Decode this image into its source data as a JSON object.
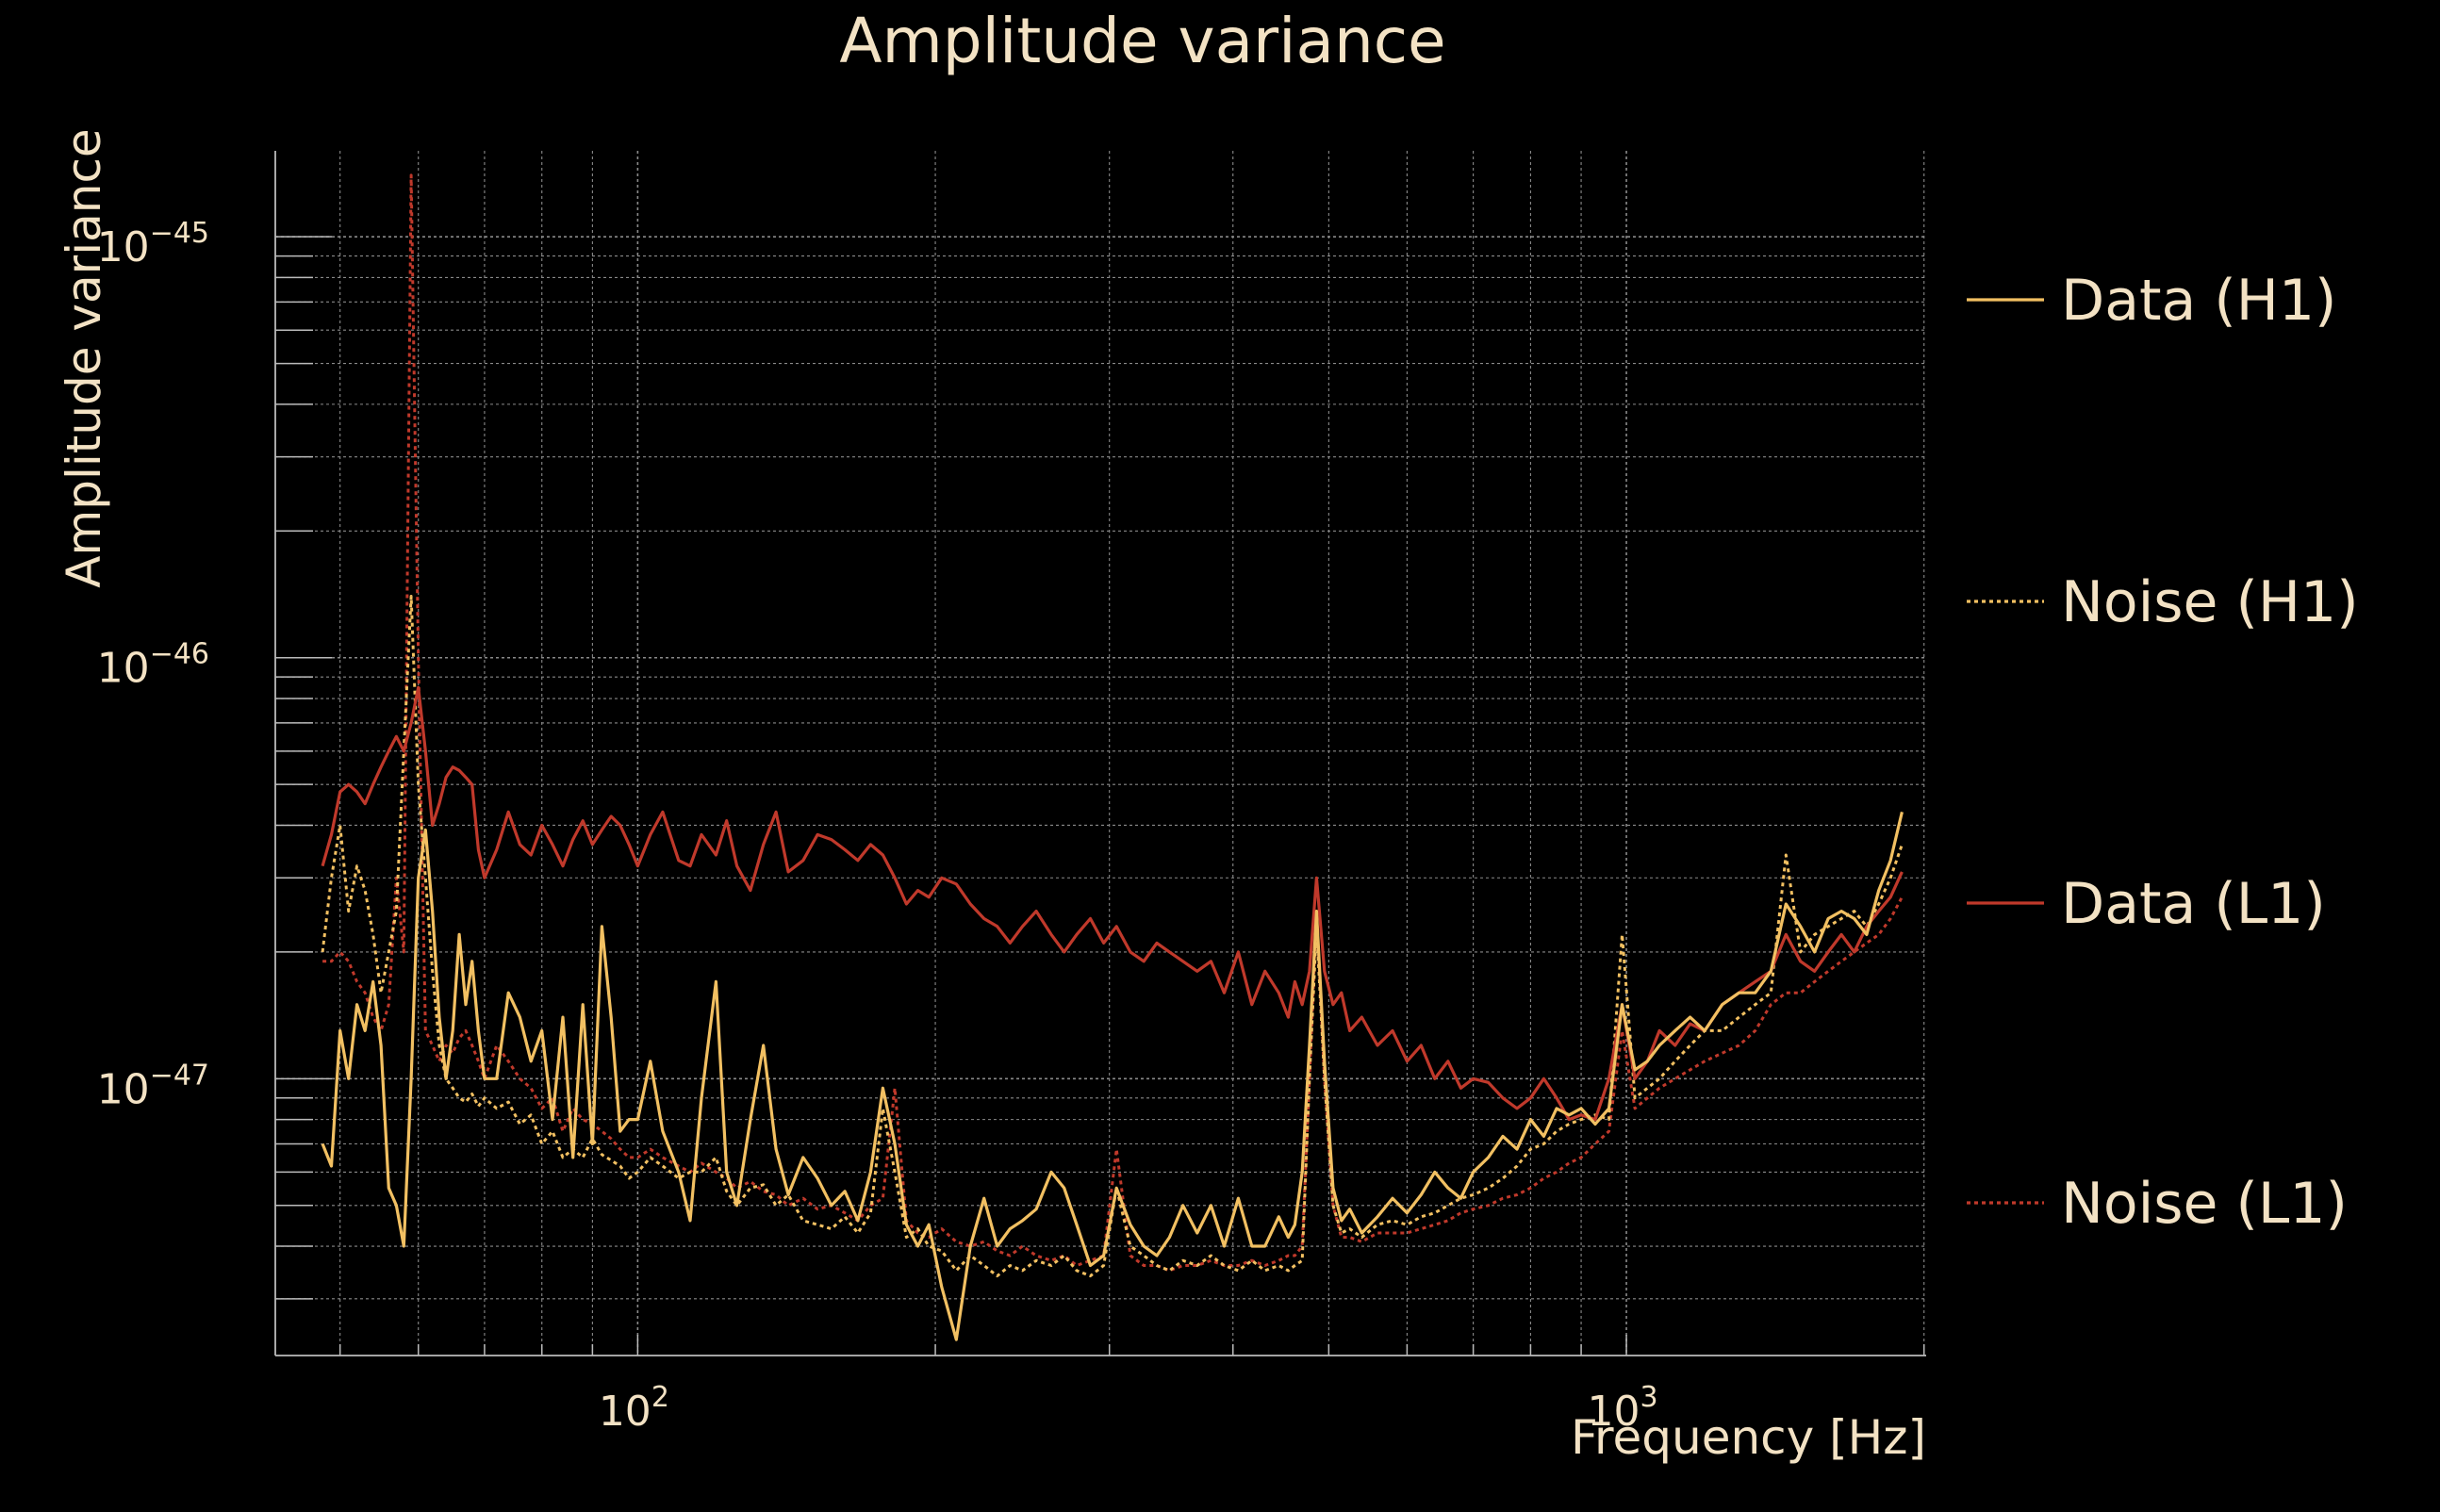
{
  "chart_data": {
    "type": "line",
    "title": "Amplitude variance",
    "xlabel": "Frequency [Hz]",
    "ylabel": "Amplitude variance",
    "xscale": "log",
    "yscale": "log",
    "xlim": [
      43,
      2010
    ],
    "ylim": [
      2.2e-48,
      1.6e-45
    ],
    "x_ticks": [
      {
        "value": 100,
        "base": "10",
        "exp": "2"
      },
      {
        "value": 1000,
        "base": "10",
        "exp": "3"
      }
    ],
    "y_ticks": [
      {
        "value": 1e-45,
        "base": "10",
        "exp": "−45"
      },
      {
        "value": 1e-46,
        "base": "10",
        "exp": "−46"
      },
      {
        "value": 1e-47,
        "base": "10",
        "exp": "−47"
      }
    ],
    "grid": true,
    "legend_position": "right",
    "colors": {
      "h1": "#f2c062",
      "l1": "#c0392b",
      "text": "#f3e2c4",
      "grid": "#8a8a8a",
      "background": "#000000"
    },
    "series": [
      {
        "name": "Data (H1)",
        "color": "#f2c062",
        "dash": "solid",
        "x": [
          48,
          49,
          50,
          51,
          52,
          53,
          54,
          55,
          56,
          57,
          58,
          59,
          60,
          61,
          62,
          63,
          64,
          65,
          66,
          67,
          68,
          69,
          70,
          72,
          74,
          76,
          78,
          80,
          82,
          84,
          86,
          88,
          90,
          92,
          94,
          96,
          98,
          100,
          103,
          106,
          110,
          113,
          116,
          120,
          123,
          126,
          130,
          134,
          138,
          142,
          147,
          152,
          157,
          162,
          167,
          172,
          177,
          182,
          187,
          192,
          197,
          203,
          210,
          217,
          224,
          231,
          238,
          245,
          253,
          262,
          270,
          278,
          287,
          296,
          305,
          315,
          325,
          335,
          345,
          356,
          368,
          380,
          392,
          405,
          418,
          431,
          445,
          455,
          462,
          470,
          478,
          486,
          495,
          505,
          515,
          525,
          540,
          560,
          580,
          600,
          620,
          640,
          660,
          680,
          700,
          725,
          750,
          775,
          800,
          825,
          850,
          875,
          900,
          930,
          960,
          990,
          1020,
          1050,
          1080,
          1120,
          1160,
          1200,
          1250,
          1300,
          1350,
          1400,
          1450,
          1500,
          1550,
          1600,
          1650,
          1700,
          1750,
          1800,
          1850,
          1900
        ],
        "values": [
          7e-48,
          6.2e-48,
          1.3e-47,
          1e-47,
          1.5e-47,
          1.3e-47,
          1.7e-47,
          1.2e-47,
          5.5e-48,
          5e-48,
          4e-48,
          1e-47,
          3e-47,
          3.9e-47,
          2.5e-47,
          1.4e-47,
          1e-47,
          1.3e-47,
          2.2e-47,
          1.5e-47,
          1.9e-47,
          1.3e-47,
          1e-47,
          1e-47,
          1.6e-47,
          1.4e-47,
          1.1e-47,
          1.3e-47,
          8e-48,
          1.4e-47,
          6.5e-48,
          1.5e-47,
          7e-48,
          2.3e-47,
          1.4e-47,
          7.5e-48,
          8e-48,
          8e-48,
          1.1e-47,
          7.5e-48,
          6e-48,
          4.6e-48,
          9e-48,
          1.7e-47,
          6e-48,
          5e-48,
          8e-48,
          1.2e-47,
          6.8e-48,
          5.3e-48,
          6.5e-48,
          5.8e-48,
          5e-48,
          5.4e-48,
          4.6e-48,
          6e-48,
          9.5e-48,
          7e-48,
          4.5e-48,
          4e-48,
          4.5e-48,
          3.2e-48,
          2.4e-48,
          4e-48,
          5.2e-48,
          4e-48,
          4.4e-48,
          4.6e-48,
          4.9e-48,
          6e-48,
          5.5e-48,
          4.5e-48,
          3.6e-48,
          3.8e-48,
          5.5e-48,
          4.5e-48,
          4e-48,
          3.8e-48,
          4.2e-48,
          5e-48,
          4.3e-48,
          5e-48,
          4e-48,
          5.2e-48,
          4e-48,
          4e-48,
          4.7e-48,
          4.2e-48,
          4.5e-48,
          6e-48,
          1.2e-47,
          2.5e-47,
          1.1e-47,
          5.5e-48,
          4.6e-48,
          4.9e-48,
          4.3e-48,
          4.7e-48,
          5.2e-48,
          4.8e-48,
          5.3e-48,
          6e-48,
          5.5e-48,
          5.2e-48,
          6e-48,
          6.5e-48,
          7.3e-48,
          6.8e-48,
          8e-48,
          7.3e-48,
          8.5e-48,
          8.2e-48,
          8.5e-48,
          7.8e-48,
          8.5e-48,
          1.5e-47,
          1.05e-47,
          1.1e-47,
          1.2e-47,
          1.3e-47,
          1.4e-47,
          1.3e-47,
          1.5e-47,
          1.6e-47,
          1.6e-47,
          1.8e-47,
          2.6e-47,
          2.3e-47,
          2e-47,
          2.4e-47,
          2.5e-47,
          2.4e-47,
          2.2e-47,
          2.8e-47,
          3.3e-47,
          4.3e-47
        ]
      },
      {
        "name": "Noise (H1)",
        "color": "#f2c062",
        "dash": "dot",
        "x": [
          48,
          49,
          50,
          51,
          52,
          53,
          54,
          55,
          56,
          57,
          58,
          59,
          60,
          61,
          62,
          63,
          64,
          65,
          66,
          67,
          68,
          69,
          70,
          72,
          74,
          76,
          78,
          80,
          82,
          84,
          86,
          88,
          90,
          92,
          94,
          96,
          98,
          100,
          103,
          106,
          110,
          113,
          116,
          120,
          123,
          126,
          130,
          134,
          138,
          142,
          147,
          152,
          157,
          162,
          167,
          172,
          177,
          182,
          187,
          192,
          197,
          203,
          210,
          217,
          224,
          231,
          238,
          245,
          253,
          262,
          270,
          278,
          287,
          296,
          305,
          315,
          325,
          335,
          345,
          356,
          368,
          380,
          392,
          405,
          418,
          431,
          445,
          455,
          462,
          470,
          478,
          486,
          495,
          505,
          515,
          525,
          540,
          560,
          580,
          600,
          620,
          640,
          660,
          680,
          700,
          725,
          750,
          775,
          800,
          825,
          850,
          875,
          900,
          930,
          960,
          990,
          1020,
          1050,
          1080,
          1120,
          1160,
          1200,
          1250,
          1300,
          1350,
          1400,
          1450,
          1500,
          1550,
          1600,
          1650,
          1700,
          1750,
          1800,
          1850,
          1900
        ],
        "values": [
          2e-47,
          3e-47,
          4e-47,
          2.5e-47,
          3.2e-47,
          2.8e-47,
          2.2e-47,
          1.6e-47,
          2e-47,
          2.5e-47,
          6e-47,
          1.4e-46,
          5e-47,
          3e-47,
          1.8e-47,
          1.2e-47,
          1e-47,
          9.5e-48,
          9e-48,
          8.8e-48,
          9.2e-48,
          8.6e-48,
          9e-48,
          8.5e-48,
          8.8e-48,
          7.8e-48,
          8.2e-48,
          7e-48,
          7.5e-48,
          6.5e-48,
          6.8e-48,
          6.5e-48,
          7.2e-48,
          6.6e-48,
          6.4e-48,
          6.2e-48,
          5.8e-48,
          6e-48,
          6.5e-48,
          6.2e-48,
          5.8e-48,
          6e-48,
          6e-48,
          6.5e-48,
          5.4e-48,
          5e-48,
          5.5e-48,
          5.6e-48,
          5e-48,
          5.3e-48,
          4.6e-48,
          4.5e-48,
          4.4e-48,
          4.7e-48,
          4.3e-48,
          4.8e-48,
          8.5e-48,
          6e-48,
          4.2e-48,
          4.4e-48,
          4e-48,
          3.9e-48,
          3.5e-48,
          3.8e-48,
          3.6e-48,
          3.4e-48,
          3.6e-48,
          3.5e-48,
          3.7e-48,
          3.6e-48,
          3.8e-48,
          3.5e-48,
          3.4e-48,
          3.6e-48,
          5.5e-48,
          4e-48,
          3.8e-48,
          3.6e-48,
          3.5e-48,
          3.7e-48,
          3.6e-48,
          3.8e-48,
          3.6e-48,
          3.5e-48,
          3.7e-48,
          3.5e-48,
          3.6e-48,
          3.5e-48,
          3.6e-48,
          3.7e-48,
          1e-47,
          2.3e-47,
          1e-47,
          5e-48,
          4.3e-48,
          4.4e-48,
          4.2e-48,
          4.5e-48,
          4.6e-48,
          4.5e-48,
          4.7e-48,
          4.8e-48,
          5e-48,
          5.2e-48,
          5.3e-48,
          5.5e-48,
          5.8e-48,
          6.2e-48,
          6.8e-48,
          7e-48,
          7.5e-48,
          7.8e-48,
          8e-48,
          8.2e-48,
          8e-48,
          2.2e-47,
          9e-48,
          9.5e-48,
          1e-47,
          1.1e-47,
          1.2e-47,
          1.3e-47,
          1.3e-47,
          1.4e-47,
          1.5e-47,
          1.6e-47,
          3.4e-47,
          2e-47,
          2.2e-47,
          2.3e-47,
          2.4e-47,
          2.5e-47,
          2.3e-47,
          2.6e-47,
          3e-47,
          3.6e-47
        ]
      },
      {
        "name": "Data (L1)",
        "color": "#c0392b",
        "dash": "solid",
        "x": [
          48,
          49,
          50,
          51,
          52,
          53,
          54,
          55,
          56,
          57,
          58,
          59,
          60,
          61,
          62,
          63,
          64,
          65,
          66,
          67,
          68,
          69,
          70,
          72,
          74,
          76,
          78,
          80,
          82,
          84,
          86,
          88,
          90,
          92,
          94,
          96,
          98,
          100,
          103,
          106,
          110,
          113,
          116,
          120,
          123,
          126,
          130,
          134,
          138,
          142,
          147,
          152,
          157,
          162,
          167,
          172,
          177,
          182,
          187,
          192,
          197,
          203,
          210,
          217,
          224,
          231,
          238,
          245,
          253,
          262,
          270,
          278,
          287,
          296,
          305,
          315,
          325,
          335,
          345,
          356,
          368,
          380,
          392,
          405,
          418,
          431,
          445,
          455,
          462,
          470,
          478,
          486,
          495,
          505,
          515,
          525,
          540,
          560,
          580,
          600,
          620,
          640,
          660,
          680,
          700,
          725,
          750,
          775,
          800,
          825,
          850,
          875,
          900,
          930,
          960,
          990,
          1020,
          1050,
          1080,
          1120,
          1160,
          1200,
          1250,
          1300,
          1350,
          1400,
          1450,
          1500,
          1550,
          1600,
          1650,
          1700,
          1750,
          1800,
          1850,
          1900
        ],
        "values": [
          3.2e-47,
          3.8e-47,
          4.8e-47,
          5e-47,
          4.8e-47,
          4.5e-47,
          5e-47,
          5.5e-47,
          6e-47,
          6.5e-47,
          6e-47,
          7e-47,
          8.5e-47,
          6e-47,
          4e-47,
          4.5e-47,
          5.2e-47,
          5.5e-47,
          5.4e-47,
          5.2e-47,
          5e-47,
          3.5e-47,
          3e-47,
          3.5e-47,
          4.3e-47,
          3.6e-47,
          3.4e-47,
          4e-47,
          3.6e-47,
          3.2e-47,
          3.7e-47,
          4.1e-47,
          3.6e-47,
          3.9e-47,
          4.2e-47,
          4e-47,
          3.6e-47,
          3.2e-47,
          3.8e-47,
          4.3e-47,
          3.3e-47,
          3.2e-47,
          3.8e-47,
          3.4e-47,
          4.1e-47,
          3.2e-47,
          2.8e-47,
          3.6e-47,
          4.3e-47,
          3.1e-47,
          3.3e-47,
          3.8e-47,
          3.7e-47,
          3.5e-47,
          3.3e-47,
          3.6e-47,
          3.4e-47,
          3e-47,
          2.6e-47,
          2.8e-47,
          2.7e-47,
          3e-47,
          2.9e-47,
          2.6e-47,
          2.4e-47,
          2.3e-47,
          2.1e-47,
          2.3e-47,
          2.5e-47,
          2.2e-47,
          2e-47,
          2.2e-47,
          2.4e-47,
          2.1e-47,
          2.3e-47,
          2e-47,
          1.9e-47,
          2.1e-47,
          2e-47,
          1.9e-47,
          1.8e-47,
          1.9e-47,
          1.6e-47,
          2e-47,
          1.5e-47,
          1.8e-47,
          1.6e-47,
          1.4e-47,
          1.7e-47,
          1.5e-47,
          1.8e-47,
          3e-47,
          1.8e-47,
          1.5e-47,
          1.6e-47,
          1.3e-47,
          1.4e-47,
          1.2e-47,
          1.3e-47,
          1.1e-47,
          1.2e-47,
          1e-47,
          1.1e-47,
          9.5e-48,
          1e-47,
          9.8e-48,
          9e-48,
          8.5e-48,
          9e-48,
          1e-47,
          9e-48,
          8e-48,
          8.2e-48,
          8e-48,
          1e-47,
          1.5e-47,
          1e-47,
          1.1e-47,
          1.3e-47,
          1.2e-47,
          1.35e-47,
          1.3e-47,
          1.5e-47,
          1.6e-47,
          1.7e-47,
          1.8e-47,
          2.2e-47,
          1.9e-47,
          1.8e-47,
          2e-47,
          2.2e-47,
          2e-47,
          2.3e-47,
          2.5e-47,
          2.7e-47,
          3.1e-47
        ]
      },
      {
        "name": "Noise (L1)",
        "color": "#c0392b",
        "dash": "dot",
        "x": [
          48,
          49,
          50,
          51,
          52,
          53,
          54,
          55,
          56,
          57,
          58,
          59,
          60,
          61,
          62,
          63,
          64,
          65,
          66,
          67,
          68,
          69,
          70,
          72,
          74,
          76,
          78,
          80,
          82,
          84,
          86,
          88,
          90,
          92,
          94,
          96,
          98,
          100,
          103,
          106,
          110,
          113,
          116,
          120,
          123,
          126,
          130,
          134,
          138,
          142,
          147,
          152,
          157,
          162,
          167,
          172,
          177,
          182,
          187,
          192,
          197,
          203,
          210,
          217,
          224,
          231,
          238,
          245,
          253,
          262,
          270,
          278,
          287,
          296,
          305,
          315,
          325,
          335,
          345,
          356,
          368,
          380,
          392,
          405,
          418,
          431,
          445,
          455,
          462,
          470,
          478,
          486,
          495,
          505,
          515,
          525,
          540,
          560,
          580,
          600,
          620,
          640,
          660,
          680,
          700,
          725,
          750,
          775,
          800,
          825,
          850,
          875,
          900,
          930,
          960,
          990,
          1020,
          1050,
          1080,
          1120,
          1160,
          1200,
          1250,
          1300,
          1350,
          1400,
          1450,
          1500,
          1550,
          1600,
          1650,
          1700,
          1750,
          1800,
          1850,
          1900
        ],
        "values": [
          1.9e-47,
          1.9e-47,
          2e-47,
          1.9e-47,
          1.7e-47,
          1.6e-47,
          1.4e-47,
          1.3e-47,
          1.5e-47,
          3e-47,
          2e-47,
          1.4e-45,
          1e-46,
          1.3e-47,
          1.2e-47,
          1.1e-47,
          1.2e-47,
          1.15e-47,
          1.25e-47,
          1.3e-47,
          1.2e-47,
          1.1e-47,
          1e-47,
          1.2e-47,
          1.1e-47,
          1e-47,
          9.5e-48,
          8.5e-48,
          9e-48,
          7.5e-48,
          8.5e-48,
          8e-48,
          7.8e-48,
          7.5e-48,
          7.2e-48,
          6.8e-48,
          6.5e-48,
          6.5e-48,
          6.8e-48,
          6.5e-48,
          6.2e-48,
          6e-48,
          6.3e-48,
          6e-48,
          5.8e-48,
          5.5e-48,
          5.7e-48,
          5.4e-48,
          5.3e-48,
          5e-48,
          5.2e-48,
          4.9e-48,
          5e-48,
          4.8e-48,
          4.6e-48,
          5e-48,
          5.2e-48,
          9.5e-48,
          4.6e-48,
          4.3e-48,
          4.2e-48,
          4.4e-48,
          4.1e-48,
          4e-48,
          4.1e-48,
          3.9e-48,
          3.8e-48,
          4e-48,
          3.8e-48,
          3.7e-48,
          3.8e-48,
          3.6e-48,
          3.7e-48,
          3.8e-48,
          6.8e-48,
          3.8e-48,
          3.6e-48,
          3.6e-48,
          3.5e-48,
          3.6e-48,
          3.6e-48,
          3.7e-48,
          3.6e-48,
          3.6e-48,
          3.7e-48,
          3.6e-48,
          3.7e-48,
          3.8e-48,
          3.8e-48,
          4e-48,
          1e-47,
          2.5e-47,
          1e-47,
          5e-48,
          4.2e-48,
          4.2e-48,
          4.1e-48,
          4.3e-48,
          4.3e-48,
          4.3e-48,
          4.4e-48,
          4.5e-48,
          4.6e-48,
          4.8e-48,
          4.9e-48,
          5e-48,
          5.2e-48,
          5.3e-48,
          5.5e-48,
          5.8e-48,
          6e-48,
          6.3e-48,
          6.5e-48,
          7e-48,
          7.5e-48,
          1.3e-47,
          8.5e-48,
          9e-48,
          9.5e-48,
          1e-47,
          1.05e-47,
          1.1e-47,
          1.15e-47,
          1.2e-47,
          1.3e-47,
          1.5e-47,
          1.6e-47,
          1.6e-47,
          1.7e-47,
          1.8e-47,
          1.9e-47,
          2e-47,
          2.1e-47,
          2.2e-47,
          2.4e-47,
          2.7e-47
        ]
      }
    ]
  }
}
